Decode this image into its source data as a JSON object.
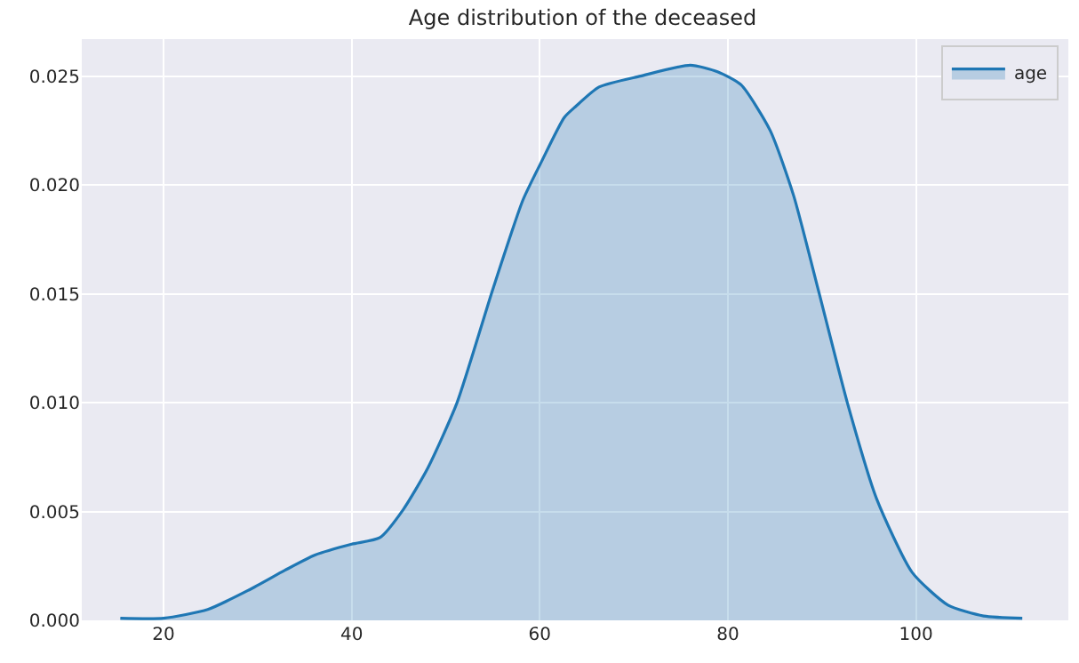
{
  "chart_data": {
    "type": "area",
    "title": "Age distribution of the deceased",
    "x": [
      15.4,
      20,
      24.7,
      29.1,
      32.9,
      36.1,
      40,
      43,
      45.5,
      48.1,
      51.2,
      55,
      58.2,
      60.1,
      62.6,
      63.8,
      66.3,
      70.7,
      76,
      78.9,
      81.4,
      84.5,
      87,
      89.6,
      92.7,
      95.8,
      99.6,
      103.4,
      107.2,
      111.3
    ],
    "series": [
      {
        "name": "age",
        "color": "#1f77b4",
        "values": [
          0.0001,
          0.0001,
          0.0005,
          0.0014,
          0.0023,
          0.003,
          0.0035,
          0.0038,
          0.0051,
          0.007,
          0.01,
          0.0152,
          0.0193,
          0.021,
          0.0231,
          0.0236,
          0.0245,
          0.025,
          0.0255,
          0.0252,
          0.0246,
          0.0225,
          0.0195,
          0.0152,
          0.01,
          0.0056,
          0.0022,
          0.0007,
          0.0002,
          0.0001
        ]
      }
    ],
    "xlim": [
      11.3,
      116.2
    ],
    "ylim": [
      0,
      0.0267
    ],
    "xticks": [
      20,
      40,
      60,
      80,
      100
    ],
    "yticks": [
      {
        "value": 0,
        "label": "0.000"
      },
      {
        "value": 0.005,
        "label": "0.005"
      },
      {
        "value": 0.01,
        "label": "0.010"
      },
      {
        "value": 0.015,
        "label": "0.015"
      },
      {
        "value": 0.02,
        "label": "0.020"
      },
      {
        "value": 0.025,
        "label": "0.025"
      }
    ],
    "grid": true,
    "legend": "top right"
  }
}
